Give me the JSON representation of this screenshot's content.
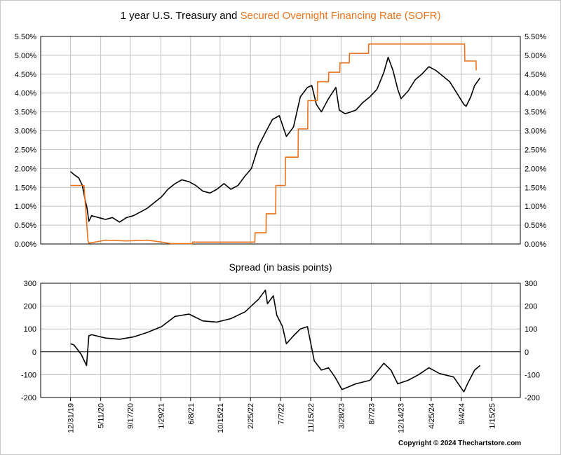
{
  "title_part1": "1 year U.S. Treasury and ",
  "title_part2": "Secured Overnight Financing Rate (SOFR)",
  "subtitle": "Spread (in basis points)",
  "copyright": "Copyright © 2024 Thechartstore.com",
  "colors": {
    "treasury": "#000000",
    "sofr": "#e8731c",
    "grid": "#c0c0c0"
  },
  "chart_data": [
    {
      "type": "line",
      "title": "1 year U.S. Treasury and Secured Overnight Financing Rate (SOFR)",
      "ylim": [
        0,
        5.5
      ],
      "yticks": [
        "0.00%",
        "0.50%",
        "1.00%",
        "1.50%",
        "2.00%",
        "2.50%",
        "3.00%",
        "3.50%",
        "4.00%",
        "4.50%",
        "5.00%",
        "5.50%"
      ],
      "x_ticks": [
        "12/31/19",
        "5/11/20",
        "9/17/20",
        "1/29/21",
        "6/8/21",
        "10/15/21",
        "2/25/22",
        "7/7/22",
        "11/15/22",
        "3/28/23",
        "8/7/23",
        "12/14/23",
        "4/25/24",
        "9/4/24",
        "1/15/25"
      ],
      "grid": true,
      "series": [
        {
          "name": "1 year U.S. Treasury",
          "points": [
            [
              "2019-12-31",
              1.92
            ],
            [
              "2020-01-15",
              1.84
            ],
            [
              "2020-02-05",
              1.75
            ],
            [
              "2020-02-20",
              1.56
            ],
            [
              "2020-03-03",
              1.2
            ],
            [
              "2020-03-12",
              0.95
            ],
            [
              "2020-03-20",
              0.6
            ],
            [
              "2020-04-01",
              0.75
            ],
            [
              "2020-05-01",
              0.7
            ],
            [
              "2020-06-01",
              0.65
            ],
            [
              "2020-07-01",
              0.7
            ],
            [
              "2020-08-01",
              0.58
            ],
            [
              "2020-09-01",
              0.7
            ],
            [
              "2020-10-01",
              0.75
            ],
            [
              "2020-11-01",
              0.85
            ],
            [
              "2020-12-01",
              0.95
            ],
            [
              "2021-01-01",
              1.1
            ],
            [
              "2021-02-01",
              1.25
            ],
            [
              "2021-03-01",
              1.45
            ],
            [
              "2021-04-01",
              1.6
            ],
            [
              "2021-05-01",
              1.7
            ],
            [
              "2021-06-01",
              1.65
            ],
            [
              "2021-07-01",
              1.55
            ],
            [
              "2021-08-01",
              1.4
            ],
            [
              "2021-09-01",
              1.35
            ],
            [
              "2021-10-01",
              1.45
            ],
            [
              "2021-11-01",
              1.6
            ],
            [
              "2021-12-01",
              1.45
            ],
            [
              "2022-01-01",
              1.55
            ],
            [
              "2022-02-01",
              1.8
            ],
            [
              "2022-03-01",
              2.0
            ],
            [
              "2022-04-01",
              2.6
            ],
            [
              "2022-05-01",
              2.95
            ],
            [
              "2022-06-01",
              3.3
            ],
            [
              "2022-07-01",
              3.4
            ],
            [
              "2022-08-01",
              2.85
            ],
            [
              "2022-09-01",
              3.1
            ],
            [
              "2022-10-01",
              3.9
            ],
            [
              "2022-11-01",
              4.15
            ],
            [
              "2022-11-20",
              4.2
            ],
            [
              "2022-12-10",
              3.7
            ],
            [
              "2023-01-01",
              3.5
            ],
            [
              "2023-02-01",
              3.85
            ],
            [
              "2023-03-05",
              4.15
            ],
            [
              "2023-03-20",
              3.55
            ],
            [
              "2023-04-15",
              3.45
            ],
            [
              "2023-05-10",
              3.5
            ],
            [
              "2023-06-01",
              3.55
            ],
            [
              "2023-07-01",
              3.75
            ],
            [
              "2023-08-01",
              3.9
            ],
            [
              "2023-09-01",
              4.1
            ],
            [
              "2023-10-01",
              4.55
            ],
            [
              "2023-10-20",
              4.95
            ],
            [
              "2023-11-10",
              4.6
            ],
            [
              "2023-12-01",
              4.1
            ],
            [
              "2023-12-15",
              3.85
            ],
            [
              "2024-01-15",
              4.05
            ],
            [
              "2024-02-15",
              4.35
            ],
            [
              "2024-03-15",
              4.5
            ],
            [
              "2024-04-15",
              4.7
            ],
            [
              "2024-05-15",
              4.6
            ],
            [
              "2024-06-15",
              4.45
            ],
            [
              "2024-07-15",
              4.3
            ],
            [
              "2024-08-15",
              4.0
            ],
            [
              "2024-09-15",
              3.7
            ],
            [
              "2024-09-25",
              3.65
            ],
            [
              "2024-10-15",
              3.9
            ],
            [
              "2024-11-01",
              4.2
            ],
            [
              "2024-11-25",
              4.4
            ]
          ]
        },
        {
          "name": "Secured Overnight Financing Rate (SOFR)",
          "points": [
            [
              "2019-12-31",
              1.55
            ],
            [
              "2020-02-28",
              1.55
            ],
            [
              "2020-03-03",
              1.2
            ],
            [
              "2020-03-16",
              0.1
            ],
            [
              "2020-03-20",
              0.02
            ],
            [
              "2020-06-01",
              0.1
            ],
            [
              "2020-09-01",
              0.08
            ],
            [
              "2020-12-01",
              0.1
            ],
            [
              "2021-02-01",
              0.05
            ],
            [
              "2021-03-15",
              0.01
            ],
            [
              "2021-06-16",
              0.01
            ],
            [
              "2021-06-17",
              0.05
            ],
            [
              "2022-03-16",
              0.05
            ],
            [
              "2022-03-17",
              0.3
            ],
            [
              "2022-05-04",
              0.3
            ],
            [
              "2022-05-05",
              0.8
            ],
            [
              "2022-06-15",
              0.8
            ],
            [
              "2022-06-16",
              1.55
            ],
            [
              "2022-07-27",
              1.55
            ],
            [
              "2022-07-28",
              2.3
            ],
            [
              "2022-09-21",
              2.3
            ],
            [
              "2022-09-22",
              3.05
            ],
            [
              "2022-11-02",
              3.05
            ],
            [
              "2022-11-03",
              3.8
            ],
            [
              "2022-12-14",
              3.8
            ],
            [
              "2022-12-15",
              4.3
            ],
            [
              "2023-02-01",
              4.3
            ],
            [
              "2023-02-02",
              4.55
            ],
            [
              "2023-03-22",
              4.55
            ],
            [
              "2023-03-23",
              4.8
            ],
            [
              "2023-05-03",
              4.8
            ],
            [
              "2023-05-04",
              5.05
            ],
            [
              "2023-07-26",
              5.05
            ],
            [
              "2023-07-27",
              5.3
            ],
            [
              "2024-09-18",
              5.3
            ],
            [
              "2024-09-19",
              4.85
            ],
            [
              "2024-11-07",
              4.85
            ],
            [
              "2024-11-08",
              4.6
            ]
          ]
        }
      ]
    },
    {
      "type": "line",
      "title": "Spread (in basis points)",
      "ylim": [
        -200,
        300
      ],
      "yticks": [
        "-200",
        "-100",
        "0",
        "100",
        "200",
        "300"
      ],
      "x_ticks": [
        "12/31/19",
        "5/11/20",
        "9/17/20",
        "1/29/21",
        "6/8/21",
        "10/15/21",
        "2/25/22",
        "7/7/22",
        "11/15/22",
        "3/28/23",
        "8/7/23",
        "12/14/23",
        "4/25/24",
        "9/4/24",
        "1/15/25"
      ],
      "grid": true,
      "series": [
        {
          "name": "Spread",
          "points": [
            [
              "2019-12-31",
              35
            ],
            [
              "2020-01-15",
              30
            ],
            [
              "2020-02-15",
              -10
            ],
            [
              "2020-03-10",
              -60
            ],
            [
              "2020-03-20",
              70
            ],
            [
              "2020-04-01",
              75
            ],
            [
              "2020-06-01",
              60
            ],
            [
              "2020-08-01",
              55
            ],
            [
              "2020-10-01",
              65
            ],
            [
              "2020-12-01",
              85
            ],
            [
              "2021-02-01",
              110
            ],
            [
              "2021-04-01",
              155
            ],
            [
              "2021-06-01",
              165
            ],
            [
              "2021-08-01",
              135
            ],
            [
              "2021-10-01",
              130
            ],
            [
              "2021-12-01",
              145
            ],
            [
              "2022-02-01",
              175
            ],
            [
              "2022-04-01",
              230
            ],
            [
              "2022-05-01",
              270
            ],
            [
              "2022-05-10",
              210
            ],
            [
              "2022-06-05",
              245
            ],
            [
              "2022-06-20",
              160
            ],
            [
              "2022-07-15",
              110
            ],
            [
              "2022-08-01",
              35
            ],
            [
              "2022-09-01",
              70
            ],
            [
              "2022-10-01",
              100
            ],
            [
              "2022-11-01",
              110
            ],
            [
              "2022-12-01",
              -40
            ],
            [
              "2023-01-01",
              -80
            ],
            [
              "2023-02-01",
              -70
            ],
            [
              "2023-03-01",
              -110
            ],
            [
              "2023-04-01",
              -165
            ],
            [
              "2023-06-01",
              -140
            ],
            [
              "2023-08-01",
              -125
            ],
            [
              "2023-10-01",
              -50
            ],
            [
              "2023-11-01",
              -80
            ],
            [
              "2023-12-01",
              -140
            ],
            [
              "2024-01-15",
              -125
            ],
            [
              "2024-03-01",
              -100
            ],
            [
              "2024-04-15",
              -70
            ],
            [
              "2024-06-01",
              -95
            ],
            [
              "2024-08-01",
              -110
            ],
            [
              "2024-09-15",
              -175
            ],
            [
              "2024-10-01",
              -140
            ],
            [
              "2024-11-01",
              -80
            ],
            [
              "2024-11-25",
              -60
            ]
          ]
        }
      ]
    }
  ]
}
